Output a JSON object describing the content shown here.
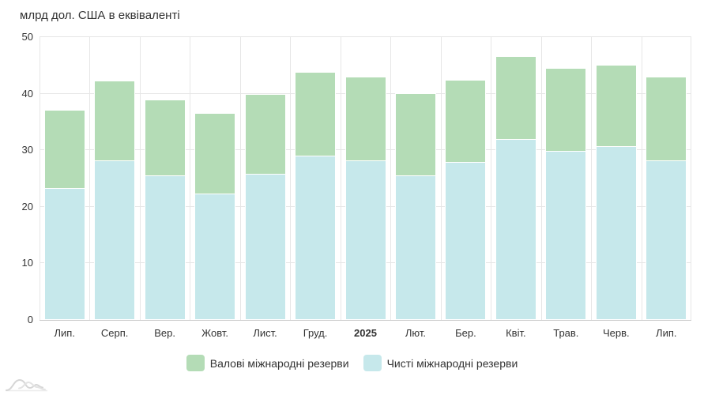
{
  "title": "млрд дол. США в еквіваленті",
  "colors": {
    "gross": "#b4dcb6",
    "net": "#c6e8eb",
    "gridline": "#e6e6e6",
    "axis_line": "#cccccc",
    "text": "#333333",
    "logo_stroke": "#d6d6d6"
  },
  "y_axis": {
    "ticks": [
      0,
      10,
      20,
      30,
      40,
      50
    ],
    "max": 50
  },
  "legend": [
    {
      "key": "gross",
      "label": "Валові міжнародні резерви",
      "color": "#b4dcb6"
    },
    {
      "key": "net",
      "label": "Чисті міжнародні резерви",
      "color": "#c6e8eb"
    }
  ],
  "chart_data": {
    "type": "bar",
    "title": "млрд дол. США в еквіваленті",
    "categories": [
      "Лип.",
      "Серп.",
      "Вер.",
      "Жовт.",
      "Лист.",
      "Груд.",
      "2025",
      "Лют.",
      "Бер.",
      "Квіт.",
      "Трав.",
      "Черв.",
      "Лип."
    ],
    "bold_categories": [
      "2025"
    ],
    "series": [
      {
        "name": "Валові міжнародні резерви",
        "color": "#b4dcb6",
        "values": [
          37.2,
          42.3,
          38.9,
          36.6,
          39.9,
          43.8,
          43.0,
          40.1,
          42.4,
          46.7,
          44.5,
          45.1,
          43.0
        ]
      },
      {
        "name": "Чисті міжнародні резерви",
        "color": "#c6e8eb",
        "values": [
          23.3,
          28.2,
          25.5,
          22.4,
          25.9,
          29.0,
          28.2,
          25.6,
          27.9,
          32.0,
          29.9,
          30.7,
          28.2
        ]
      }
    ],
    "xlabel": "",
    "ylabel": "млрд дол. США в еквіваленті",
    "ylim": [
      0,
      50
    ],
    "grid": true,
    "legend_position": "bottom"
  }
}
